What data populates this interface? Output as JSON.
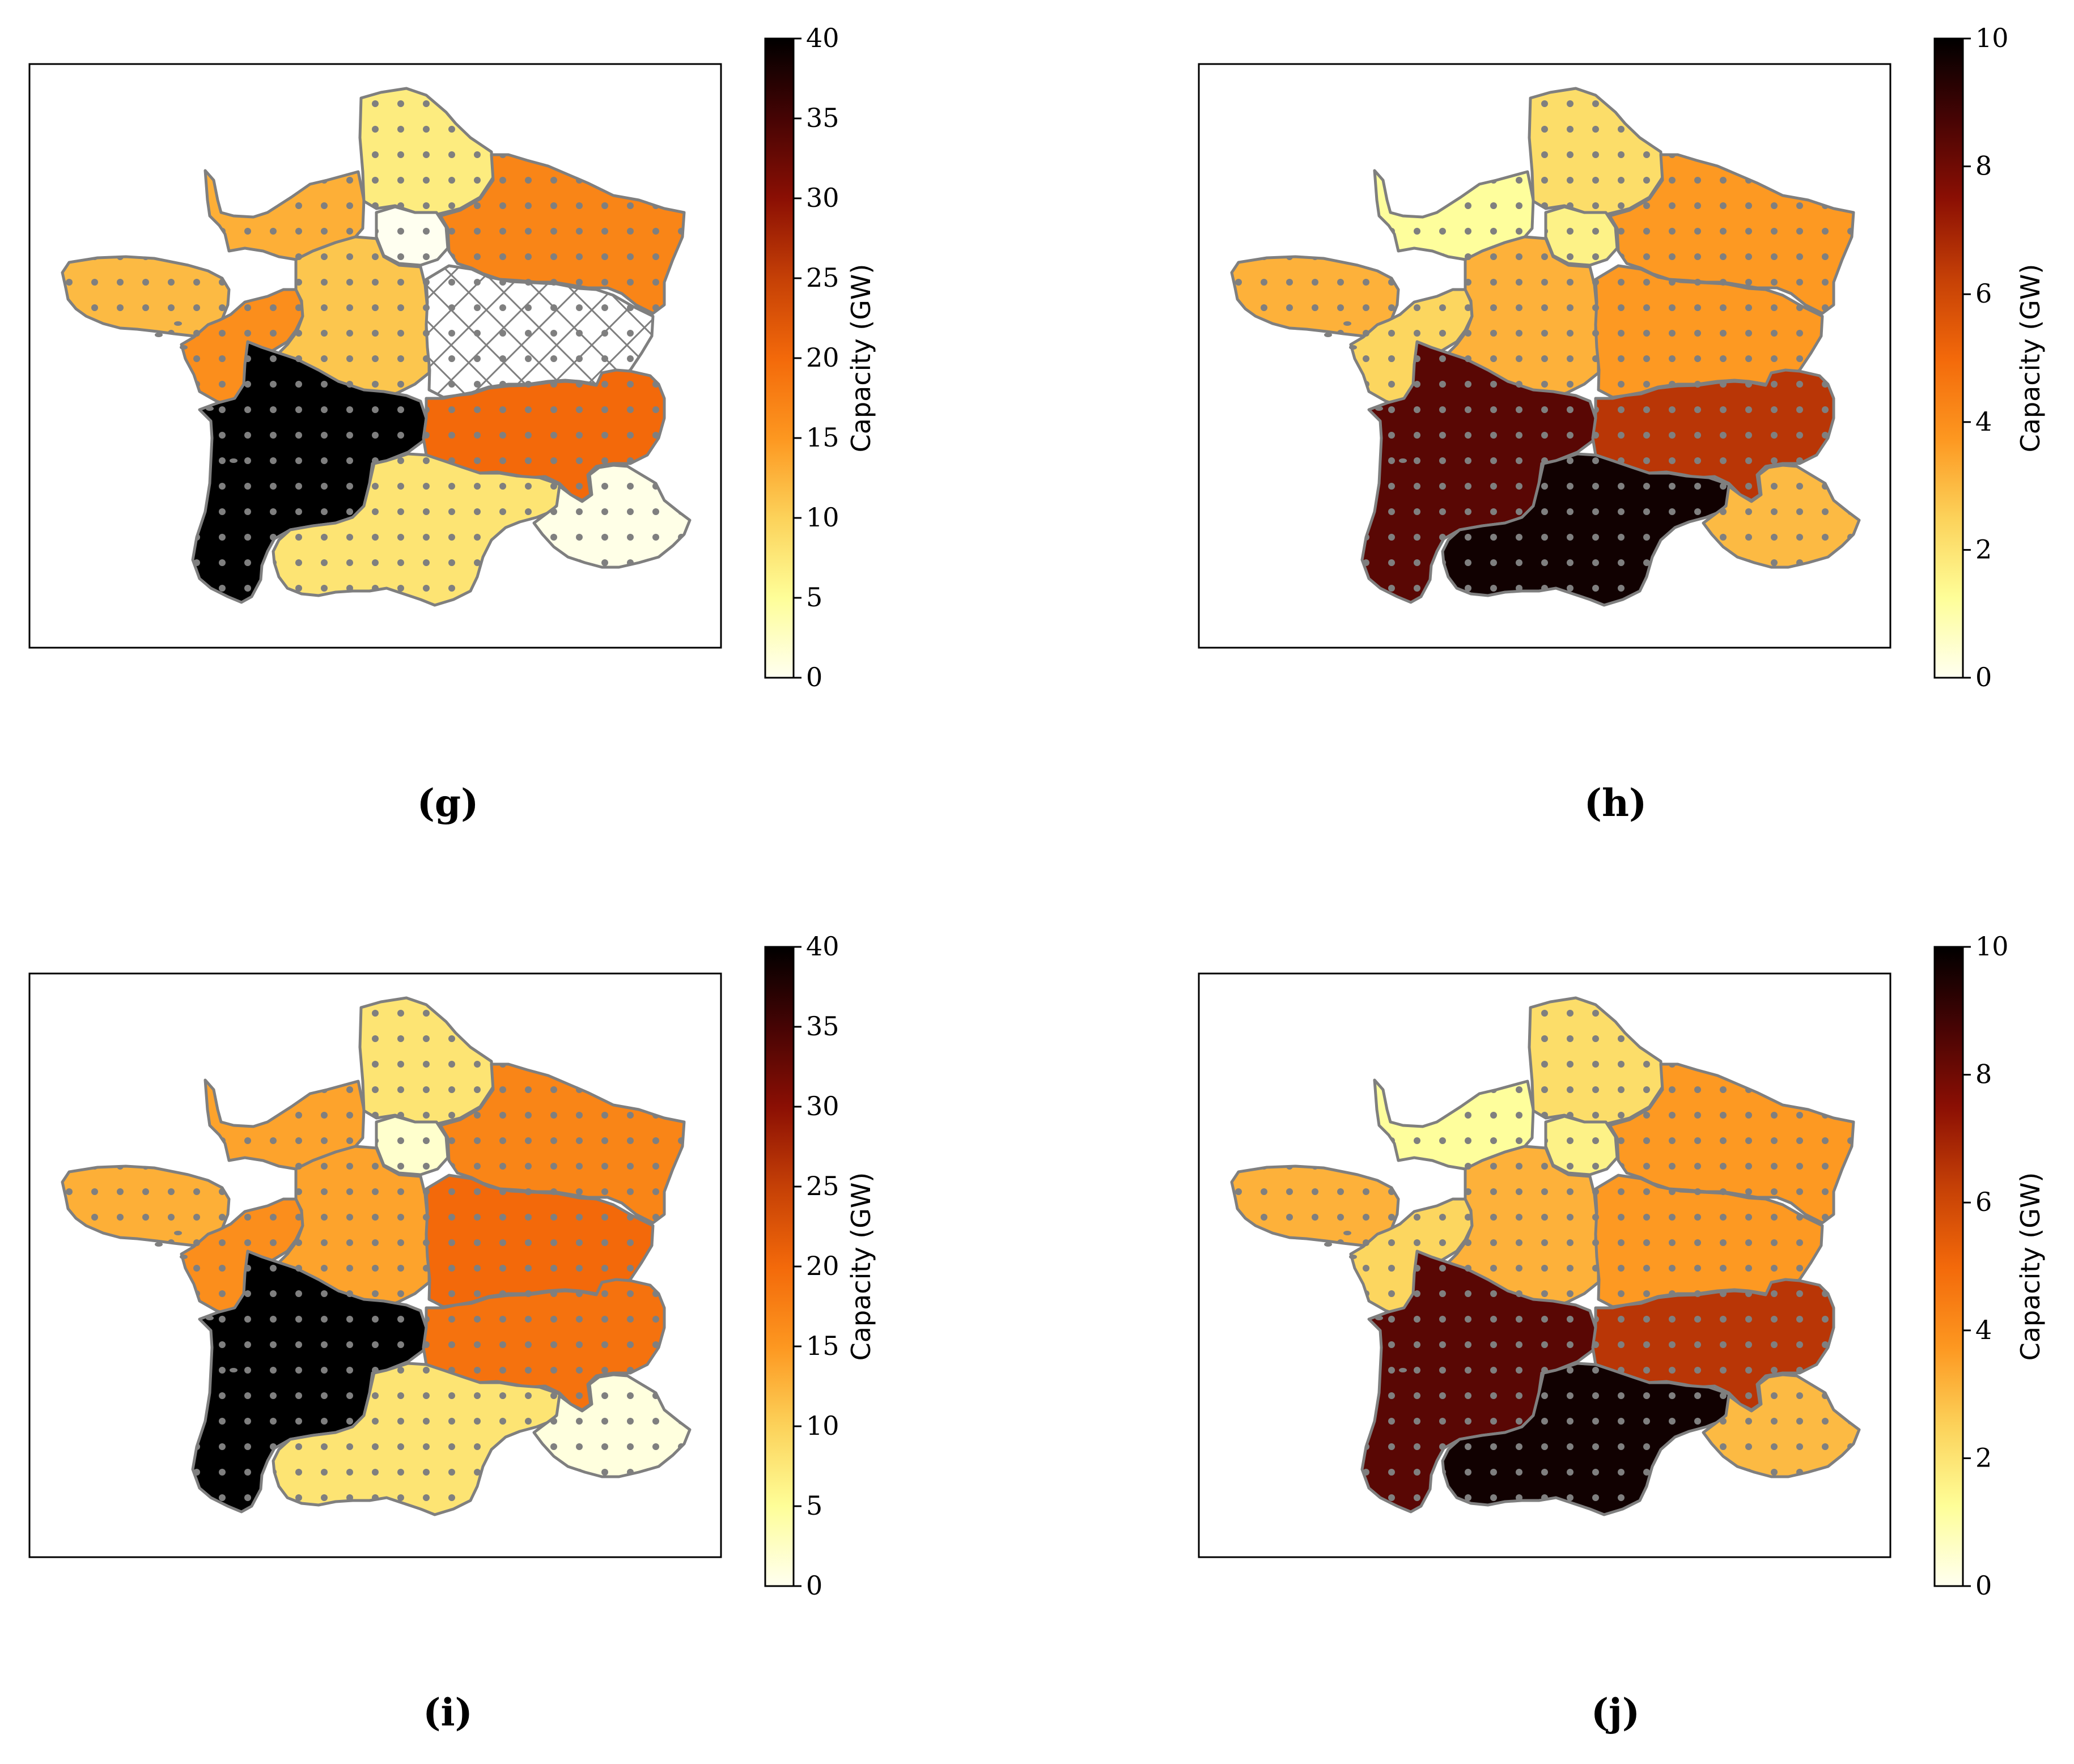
{
  "legend_label": "Capacity (GW)",
  "colormap": [
    "#fffff0",
    "#fefe98",
    "#fcd25a",
    "#fd9720",
    "#f3690a",
    "#c54006",
    "#8b0f04",
    "#460404",
    "#000000"
  ],
  "border_color": "#7f7f7f",
  "dot_color": "#7f7f7f",
  "hatch_color": "#7f7f7f",
  "panels": [
    {
      "id": "g",
      "caption": "(g)",
      "vmax": 40,
      "ticks": [
        "0",
        "5",
        "10",
        "15",
        "20",
        "25",
        "30",
        "35",
        "40"
      ],
      "regions": {
        "bretagne": 12,
        "normandie": 13,
        "hauts_de_france": 7,
        "ile_de_france": 0,
        "grand_est": 17,
        "pays_de_la_loire": 16,
        "centre_val_de_loire": 11,
        "bourgogne_franche_comte": null,
        "nouvelle_aquitaine": 40,
        "auvergne_rhone_alpes": 20,
        "occitanie": 8,
        "paca": 0.5
      },
      "hatched_region": "bourgogne_franche_comte"
    },
    {
      "id": "h",
      "caption": "(h)",
      "vmax": 10,
      "ticks": [
        "0",
        "2",
        "4",
        "6",
        "8",
        "10"
      ],
      "regions": {
        "bretagne": 3.2,
        "normandie": 1.2,
        "hauts_de_france": 2.2,
        "ile_de_france": 1.6,
        "grand_est": 3.7,
        "pays_de_la_loire": 2.4,
        "centre_val_de_loire": 3.2,
        "bourgogne_franche_comte": 3.7,
        "nouvelle_aquitaine": 8.4,
        "auvergne_rhone_alpes": 6.5,
        "occitanie": 9.7,
        "paca": 3.0
      },
      "hatched_region": null
    },
    {
      "id": "i",
      "caption": "(i)",
      "vmax": 40,
      "ticks": [
        "0",
        "5",
        "10",
        "15",
        "20",
        "25",
        "30",
        "35",
        "40"
      ],
      "regions": {
        "bretagne": 13,
        "normandie": 14,
        "hauts_de_france": 8,
        "ile_de_france": 2,
        "grand_est": 17,
        "pays_de_la_loire": 16,
        "centre_val_de_loire": 14,
        "bourgogne_franche_comte": 20,
        "nouvelle_aquitaine": 40,
        "auvergne_rhone_alpes": 19,
        "occitanie": 8,
        "paca": 1
      },
      "hatched_region": null
    },
    {
      "id": "j",
      "caption": "(j)",
      "vmax": 10,
      "ticks": [
        "0",
        "2",
        "4",
        "6",
        "8",
        "10"
      ],
      "regions": {
        "bretagne": 3.2,
        "normandie": 1.2,
        "hauts_de_france": 2.2,
        "ile_de_france": 1.6,
        "grand_est": 3.7,
        "pays_de_la_loire": 2.4,
        "centre_val_de_loire": 3.2,
        "bourgogne_franche_comte": 3.7,
        "nouvelle_aquitaine": 8.4,
        "auvergne_rhone_alpes": 6.5,
        "occitanie": 9.7,
        "paca": 3.0
      },
      "hatched_region": null
    }
  ]
}
